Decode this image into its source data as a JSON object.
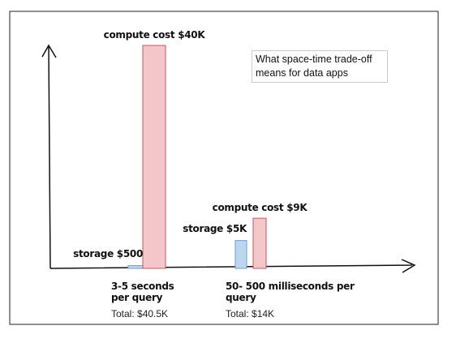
{
  "chart_data": {
    "type": "bar",
    "title": "What space-time trade-off means for data apps",
    "categories": [
      "3-5 seconds per query",
      "50- 500 milliseconds per query"
    ],
    "totals": [
      "Total: $40.5K",
      "Total: $14K"
    ],
    "series": [
      {
        "color": "#bcd6f0",
        "values": [
          500,
          5000
        ],
        "value_labels": [
          "storage $500",
          "storage $5K"
        ]
      },
      {
        "color": "#f3c6ca",
        "values": [
          40000,
          9000
        ],
        "value_labels": [
          "compute cost $40K",
          "compute cost $9K"
        ]
      }
    ]
  }
}
